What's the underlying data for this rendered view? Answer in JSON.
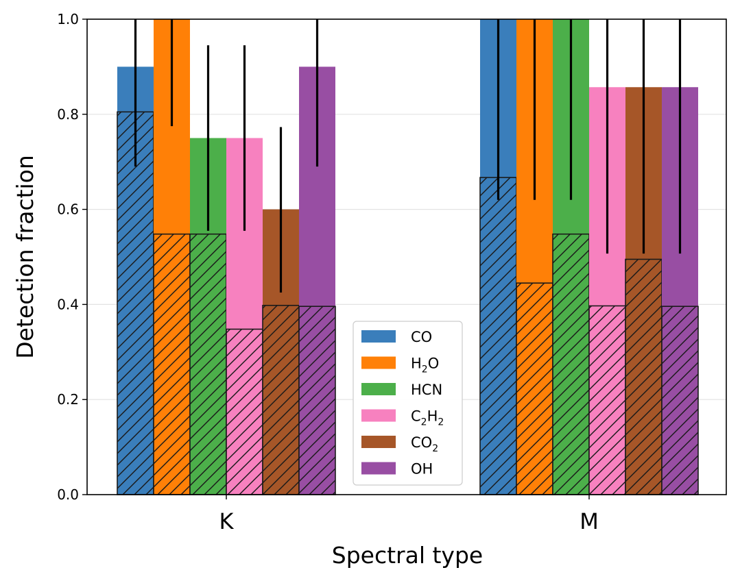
{
  "chart_data": {
    "type": "bar",
    "title": "",
    "xlabel": "Spectral type",
    "ylabel": "Detection fraction",
    "ylim": [
      0,
      1.0
    ],
    "yticks": [
      "0.0",
      "0.2",
      "0.4",
      "0.6",
      "0.8",
      "1.0"
    ],
    "categories": [
      "K",
      "M"
    ],
    "grid": true,
    "legend_position": "lower-center",
    "series": [
      {
        "name": "CO",
        "name_base": "CO",
        "name_sub": "",
        "name_after": "",
        "color": "#3a7ebb",
        "total": [
          0.9,
          1.0
        ],
        "hatched": [
          0.805,
          0.667
        ],
        "err_low": [
          0.69,
          0.62
        ],
        "err_high": [
          1.0,
          1.0
        ]
      },
      {
        "name": "H₂O",
        "name_base": "H",
        "name_sub": "2",
        "name_after": "O",
        "color": "#ff8007",
        "total": [
          1.0,
          1.0
        ],
        "hatched": [
          0.548,
          0.445
        ],
        "err_low": [
          0.775,
          0.62
        ],
        "err_high": [
          1.0,
          1.0
        ]
      },
      {
        "name": "HCN",
        "name_base": "HCN",
        "name_sub": "",
        "name_after": "",
        "color": "#4caf4a",
        "total": [
          0.75,
          1.0
        ],
        "hatched": [
          0.548,
          0.548
        ],
        "err_low": [
          0.555,
          0.62
        ],
        "err_high": [
          0.945,
          1.0
        ]
      },
      {
        "name": "C₂H₂",
        "name_base": "C",
        "name_sub": "2",
        "name_after": "H₂",
        "color": "#f781bf",
        "total": [
          0.75,
          0.857
        ],
        "hatched": [
          0.348,
          0.397
        ],
        "err_low": [
          0.555,
          0.507
        ],
        "err_high": [
          0.945,
          1.0
        ]
      },
      {
        "name": "CO₂",
        "name_base": "CO",
        "name_sub": "2",
        "name_after": "",
        "color": "#a65628",
        "total": [
          0.6,
          0.857
        ],
        "hatched": [
          0.398,
          0.495
        ],
        "err_low": [
          0.425,
          0.507
        ],
        "err_high": [
          0.773,
          1.0
        ]
      },
      {
        "name": "OH",
        "name_base": "OH",
        "name_sub": "",
        "name_after": "",
        "color": "#984ea3",
        "total": [
          0.9,
          0.857
        ],
        "hatched": [
          0.396,
          0.396
        ],
        "err_low": [
          0.69,
          0.507
        ],
        "err_high": [
          1.0,
          1.0
        ]
      }
    ]
  }
}
